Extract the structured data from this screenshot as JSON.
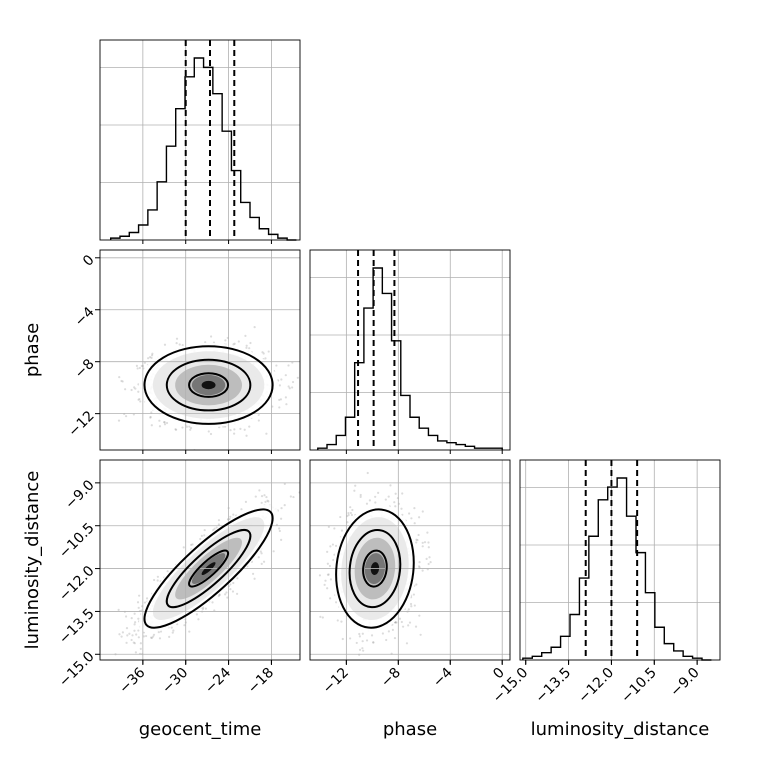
{
  "chart_data": {
    "type": "corner",
    "parameters": [
      "geocent_time",
      "phase",
      "luminosity_distance"
    ],
    "axes": {
      "geocent_time": {
        "label": "geocent_time",
        "range": [
          -42,
          -14
        ],
        "ticks": [
          -36,
          -30,
          -24,
          -18
        ],
        "tick_labels": [
          "−36",
          "−30",
          "−24",
          "−18"
        ]
      },
      "phase": {
        "label": "phase",
        "range": [
          -14.8,
          0.6
        ],
        "ticks": [
          -12,
          -8,
          -4,
          0
        ],
        "tick_labels": [
          "−12",
          "−8",
          "−4",
          "0"
        ]
      },
      "luminosity_distance": {
        "label": "luminosity_distance",
        "range": [
          -15.2,
          -8.2
        ],
        "ticks": [
          -15.0,
          -13.5,
          -12.0,
          -10.5,
          -9.0
        ],
        "tick_labels": [
          "−15.0",
          "−13.5",
          "−12.0",
          "−10.5",
          "−9.0"
        ]
      }
    },
    "grid": true,
    "quantile_lines": {
      "geocent_time": [
        -30.0,
        -26.6,
        -23.2
      ],
      "phase": [
        -11.1,
        -9.9,
        -8.3
      ],
      "luminosity_distance": [
        -12.9,
        -12.0,
        -11.1
      ]
    },
    "histograms": {
      "geocent_time": {
        "bin_edges": [
          -40.5,
          -39.2,
          -37.9,
          -36.6,
          -35.3,
          -34.0,
          -32.7,
          -31.4,
          -30.1,
          -28.8,
          -27.5,
          -26.2,
          -24.9,
          -23.6,
          -22.3,
          -21.0,
          -19.7,
          -18.4,
          -17.1,
          -15.8,
          -14.5
        ],
        "counts": [
          1,
          2,
          4,
          8,
          16,
          31,
          50,
          70,
          87,
          97,
          92,
          78,
          58,
          37,
          20,
          12,
          6,
          3,
          1,
          0
        ]
      },
      "phase": {
        "bin_edges": [
          -14.2,
          -13.49,
          -12.78,
          -12.07,
          -11.36,
          -10.65,
          -9.94,
          -9.23,
          -8.52,
          -7.81,
          -7.1,
          -6.39,
          -5.68,
          -4.97,
          -4.26,
          -3.55,
          -2.84,
          -2.13,
          -1.42,
          -0.71,
          0.0
        ],
        "counts": [
          1,
          3,
          8,
          18,
          48,
          78,
          100,
          86,
          60,
          30,
          18,
          12,
          8,
          5,
          4,
          3,
          2,
          1,
          1,
          1
        ]
      },
      "luminosity_distance": {
        "bin_edges": [
          -15.1,
          -14.77,
          -14.44,
          -14.11,
          -13.78,
          -13.45,
          -13.12,
          -12.79,
          -12.46,
          -12.13,
          -11.8,
          -11.47,
          -11.14,
          -10.81,
          -10.48,
          -10.15,
          -9.82,
          -9.49,
          -9.16,
          -8.83,
          -8.5
        ],
        "counts": [
          1,
          2,
          4,
          7,
          13,
          25,
          45,
          68,
          88,
          95,
          100,
          79,
          59,
          37,
          18,
          9,
          5,
          2,
          1,
          0
        ]
      }
    },
    "posterior": {
      "means": {
        "geocent_time": -26.8,
        "phase": -9.8,
        "luminosity_distance": -12.0
      },
      "sds": {
        "geocent_time": 3.9,
        "phase": 1.3,
        "luminosity_distance": 0.9
      },
      "correlations": {
        "geocent_time|phase": 0.0,
        "geocent_time|luminosity_distance": 0.85,
        "phase|luminosity_distance": 0.1
      }
    }
  }
}
